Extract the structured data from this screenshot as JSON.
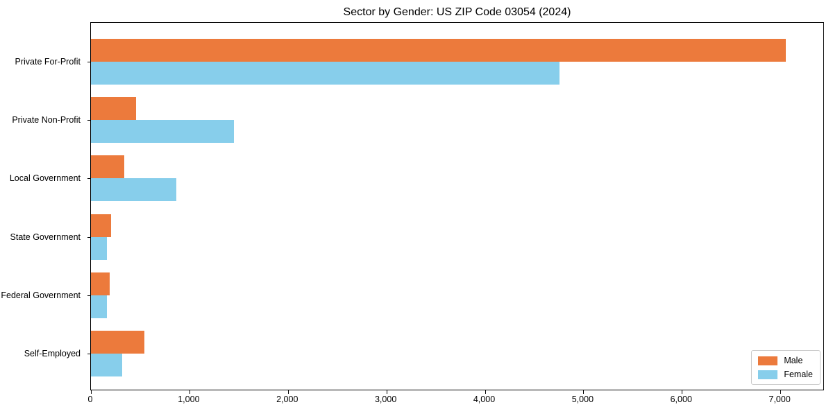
{
  "chart_data": {
    "type": "bar",
    "orientation": "horizontal",
    "title": "Sector by Gender: US ZIP Code 03054 (2024)",
    "categories": [
      "Private For-Profit",
      "Private Non-Profit",
      "Local Government",
      "State Government",
      "Federal Government",
      "Self-Employed"
    ],
    "series": [
      {
        "name": "Male",
        "color": "#ec7a3c",
        "values": [
          7055,
          460,
          340,
          205,
          190,
          540
        ]
      },
      {
        "name": "Female",
        "color": "#87ceeb",
        "values": [
          4755,
          1455,
          870,
          160,
          160,
          315
        ]
      }
    ],
    "xlabel": "",
    "ylabel": "",
    "xlim": [
      0,
      7436
    ],
    "xticks": [
      0,
      1000,
      2000,
      3000,
      4000,
      5000,
      6000,
      7000
    ],
    "xtick_labels": [
      "0",
      "1,000",
      "2,000",
      "3,000",
      "4,000",
      "5,000",
      "6,000",
      "7,000"
    ],
    "grid": false,
    "legend": {
      "position": "lower right",
      "entries": [
        "Male",
        "Female"
      ]
    },
    "colors": {
      "male": "#ec7a3c",
      "female": "#87ceeb",
      "axis": "#000000",
      "text": "#000000",
      "legend_border": "#cccccc",
      "background": "#ffffff"
    }
  }
}
